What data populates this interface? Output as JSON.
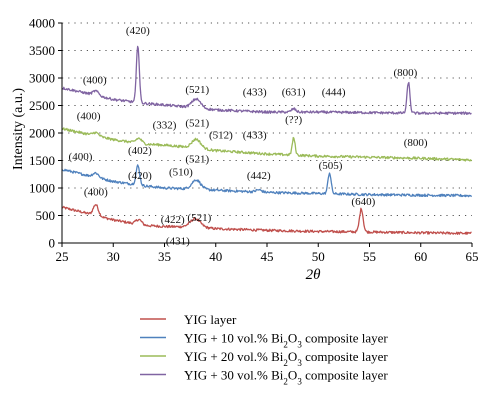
{
  "chart_data": {
    "type": "line",
    "xlabel": "2θ",
    "ylabel": "Intensity (a.u.)",
    "xlim": [
      25,
      65
    ],
    "ylim": [
      0,
      4000
    ],
    "x_ticks": [
      25,
      30,
      35,
      40,
      45,
      50,
      55,
      60,
      65
    ],
    "y_ticks": [
      0,
      500,
      1000,
      1500,
      2000,
      2500,
      3000,
      3500,
      4000
    ],
    "x_tick_labels": [
      "25",
      "30",
      "35",
      "40",
      "45",
      "50",
      "55",
      "60",
      "65"
    ],
    "y_tick_labels": [
      "0",
      "500",
      "1000",
      "1500",
      "2000",
      "2500",
      "3000",
      "3500",
      "4000"
    ],
    "grid": "dotted horizontal",
    "legend_position": "below",
    "series": [
      {
        "name": "YIG layer",
        "color": "#c0504d",
        "baseline": [
          [
            25,
            650
          ],
          [
            27,
            560
          ],
          [
            30,
            420
          ],
          [
            33,
            320
          ],
          [
            35,
            300
          ],
          [
            38,
            290
          ],
          [
            40,
            260
          ],
          [
            45,
            230
          ],
          [
            50,
            210
          ],
          [
            55,
            200
          ],
          [
            60,
            185
          ],
          [
            65,
            175
          ]
        ],
        "peaks": [
          [
            28.3,
            200,
            0.35
          ],
          [
            32.5,
            90,
            0.4
          ],
          [
            38.0,
            150,
            0.7
          ],
          [
            54.2,
            420,
            0.25
          ]
        ],
        "noise": 22
      },
      {
        "name": "YIG + 10 vol.% Bi2O3 composite layer",
        "color": "#4f81bd",
        "baseline": [
          [
            25,
            1340
          ],
          [
            27,
            1250
          ],
          [
            30,
            1120
          ],
          [
            33,
            1040
          ],
          [
            35,
            1000
          ],
          [
            38,
            980
          ],
          [
            40,
            960
          ],
          [
            45,
            920
          ],
          [
            50,
            900
          ],
          [
            55,
            880
          ],
          [
            60,
            870
          ],
          [
            65,
            860
          ]
        ],
        "peaks": [
          [
            28.3,
            80,
            0.4
          ],
          [
            32.4,
            350,
            0.25
          ],
          [
            38.1,
            170,
            0.6
          ],
          [
            44.2,
            40,
            0.4
          ],
          [
            51.1,
            380,
            0.22
          ]
        ],
        "noise": 22
      },
      {
        "name": "YIG + 20 vol.% Bi2O3 composite layer",
        "color": "#9bbb59",
        "baseline": [
          [
            25,
            2080
          ],
          [
            27,
            2000
          ],
          [
            30,
            1880
          ],
          [
            33,
            1800
          ],
          [
            35,
            1780
          ],
          [
            38,
            1730
          ],
          [
            40,
            1680
          ],
          [
            45,
            1620
          ],
          [
            50,
            1580
          ],
          [
            55,
            1560
          ],
          [
            60,
            1540
          ],
          [
            65,
            1510
          ]
        ],
        "peaks": [
          [
            28.3,
            60,
            0.4
          ],
          [
            32.5,
            90,
            0.4
          ],
          [
            38.1,
            160,
            0.6
          ],
          [
            47.6,
            310,
            0.2
          ]
        ],
        "noise": 22
      },
      {
        "name": "YIG + 30 vol.% Bi2O3 composite layer",
        "color": "#8064a2",
        "baseline": [
          [
            25,
            2820
          ],
          [
            27,
            2740
          ],
          [
            30,
            2610
          ],
          [
            33,
            2540
          ],
          [
            35,
            2510
          ],
          [
            38,
            2460
          ],
          [
            40,
            2420
          ],
          [
            45,
            2380
          ],
          [
            50,
            2380
          ],
          [
            55,
            2370
          ],
          [
            60,
            2360
          ],
          [
            65,
            2360
          ]
        ],
        "peaks": [
          [
            28.3,
            80,
            0.4
          ],
          [
            32.4,
            1050,
            0.2
          ],
          [
            38.1,
            160,
            0.6
          ],
          [
            47.6,
            60,
            0.3
          ],
          [
            58.8,
            560,
            0.2
          ]
        ],
        "noise": 22
      }
    ],
    "annotations": [
      {
        "text": "(420)",
        "x": 32.4,
        "y": 3800
      },
      {
        "text": "(400)",
        "x": 28.2,
        "y": 2900
      },
      {
        "text": "(521)",
        "x": 38.2,
        "y": 2730
      },
      {
        "text": "(433)",
        "x": 43.8,
        "y": 2680
      },
      {
        "text": "(631)",
        "x": 47.6,
        "y": 2680
      },
      {
        "text": "(444)",
        "x": 51.5,
        "y": 2680
      },
      {
        "text": "(800)",
        "x": 58.5,
        "y": 3040
      },
      {
        "text": "(400)",
        "x": 27.6,
        "y": 2250
      },
      {
        "text": "(332)",
        "x": 35.0,
        "y": 2080
      },
      {
        "text": "(521)",
        "x": 38.2,
        "y": 2120
      },
      {
        "text": "(512)",
        "x": 40.5,
        "y": 1900
      },
      {
        "text": "(433)",
        "x": 43.8,
        "y": 1900
      },
      {
        "text": "(??)",
        "x": 47.6,
        "y": 2180
      },
      {
        "text": "(800)",
        "x": 59.5,
        "y": 1760
      },
      {
        "text": "(400)",
        "x": 26.8,
        "y": 1510
      },
      {
        "text": "(402)",
        "x": 32.6,
        "y": 1620
      },
      {
        "text": "(521)",
        "x": 38.2,
        "y": 1460
      },
      {
        "text": "(510)",
        "x": 36.6,
        "y": 1230
      },
      {
        "text": "(420)",
        "x": 32.6,
        "y": 1160
      },
      {
        "text": "(442)",
        "x": 44.2,
        "y": 1160
      },
      {
        "text": "(505)",
        "x": 51.2,
        "y": 1350
      },
      {
        "text": "(400)",
        "x": 28.3,
        "y": 860
      },
      {
        "text": "(422)",
        "x": 35.8,
        "y": 360
      },
      {
        "text": "(521)",
        "x": 38.4,
        "y": 400
      },
      {
        "text": "(431)",
        "x": 36.3,
        "y": -30
      },
      {
        "text": "(640)",
        "x": 54.4,
        "y": 690
      }
    ]
  }
}
